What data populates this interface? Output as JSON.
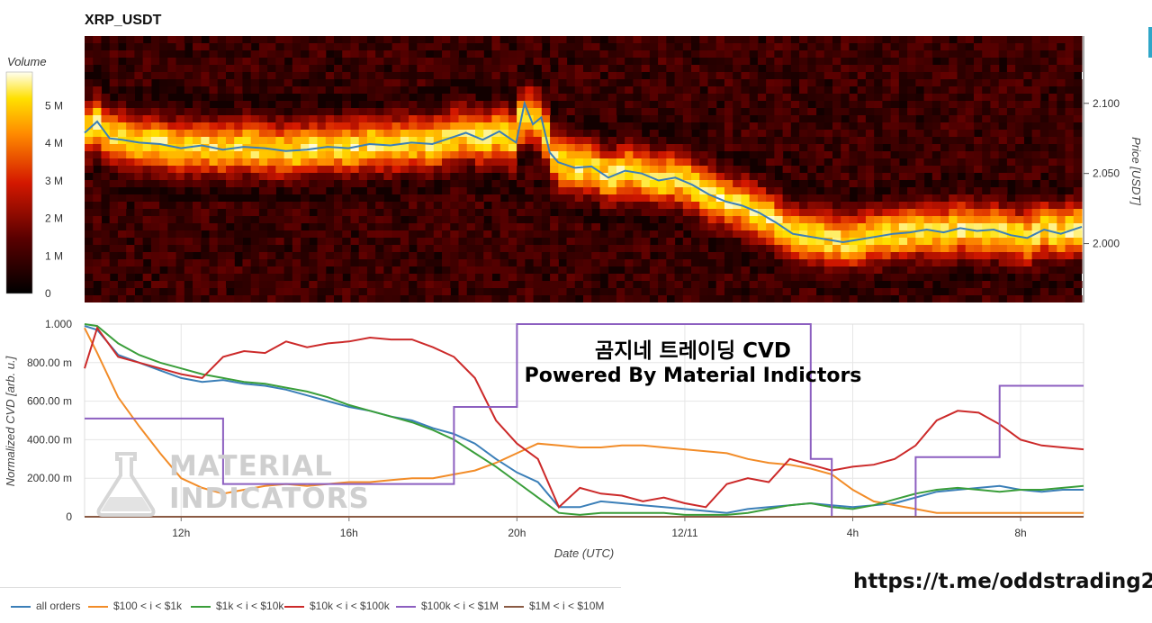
{
  "title": "XRP_USDT",
  "colorbar": {
    "title": "Volume",
    "ticks": [
      "0",
      "1 M",
      "2 M",
      "3 M",
      "4 M",
      "5 M"
    ],
    "tick_values": [
      0,
      1,
      2,
      3,
      4,
      5
    ],
    "max": 5.9
  },
  "top_chart": {
    "ylabel": "Price [USDT]",
    "y_ticks": [
      "2.000",
      "2.050",
      "2.100"
    ],
    "y_tick_values": [
      2.0,
      2.05,
      2.1
    ],
    "ylim": [
      1.958,
      2.148
    ],
    "price_color": "#3b7fb8"
  },
  "bottom_chart": {
    "ylabel": "Normalized CVD [arb. u.]",
    "xlabel": "Date (UTC)",
    "y_ticks": [
      "0",
      "200.00 m",
      "400.00 m",
      "600.00 m",
      "800.00 m",
      "1.000"
    ],
    "y_tick_values": [
      0,
      0.2,
      0.4,
      0.6,
      0.8,
      1.0
    ],
    "x_ticks": [
      "12h",
      "16h",
      "20h",
      "12/11",
      "4h",
      "8h"
    ],
    "x_tick_hours": [
      12,
      16,
      20,
      24,
      28,
      32
    ]
  },
  "watermark": {
    "title": "곰지네 트레이딩 CVD",
    "subtitle": "Powered By Material Indictors",
    "logo_line1": "MATERIAL",
    "logo_line2": "INDICATORS",
    "link": "https://t.me/oddstrading2"
  },
  "legend": [
    {
      "label": "all orders",
      "color": "#3b7fb8"
    },
    {
      "label": "$100 < i < $1k",
      "color": "#f28c28"
    },
    {
      "label": "$1k < i < $10k",
      "color": "#3a9e3a"
    },
    {
      "label": "$10k < i < $100k",
      "color": "#cc2a2a"
    },
    {
      "label": "$100k < i < $1M",
      "color": "#8c5fc0"
    },
    {
      "label": "$1M < i < $10M",
      "color": "#8a5a44"
    }
  ],
  "chart_data": [
    {
      "type": "heatmap",
      "title": "XRP_USDT",
      "ylabel": "Price [USDT]",
      "colorbar_label": "Volume",
      "x_range_hours": [
        9.7,
        33.5
      ],
      "ylim": [
        1.958,
        2.148
      ],
      "series": [
        {
          "name": "price",
          "x": [
            9.7,
            10.0,
            10.3,
            10.6,
            11.0,
            11.5,
            12.0,
            12.5,
            13.0,
            13.5,
            14.0,
            14.5,
            15.0,
            15.5,
            16.0,
            16.5,
            17.0,
            17.5,
            18.0,
            18.4,
            18.8,
            19.2,
            19.6,
            20.0,
            20.2,
            20.4,
            20.6,
            20.8,
            21.0,
            21.4,
            21.8,
            22.2,
            22.6,
            23.0,
            23.4,
            23.8,
            24.2,
            24.6,
            25.0,
            25.4,
            25.8,
            26.2,
            26.6,
            27.0,
            27.4,
            27.8,
            28.2,
            28.6,
            29.0,
            29.4,
            29.8,
            30.2,
            30.6,
            31.0,
            31.4,
            31.8,
            32.2,
            32.6,
            33.0,
            33.5
          ],
          "y": [
            2.079,
            2.087,
            2.075,
            2.074,
            2.072,
            2.071,
            2.068,
            2.07,
            2.067,
            2.069,
            2.068,
            2.066,
            2.067,
            2.069,
            2.068,
            2.071,
            2.07,
            2.072,
            2.071,
            2.075,
            2.079,
            2.074,
            2.08,
            2.072,
            2.1,
            2.085,
            2.09,
            2.065,
            2.058,
            2.054,
            2.055,
            2.047,
            2.052,
            2.05,
            2.045,
            2.047,
            2.042,
            2.035,
            2.03,
            2.027,
            2.022,
            2.015,
            2.007,
            2.005,
            2.003,
            2.001,
            2.003,
            2.005,
            2.007,
            2.008,
            2.01,
            2.008,
            2.011,
            2.009,
            2.01,
            2.006,
            2.004,
            2.01,
            2.007,
            2.012
          ]
        }
      ]
    },
    {
      "type": "line",
      "xlabel": "Date (UTC)",
      "ylabel": "Normalized CVD [arb. u.]",
      "ylim": [
        0,
        1.0
      ],
      "x": [
        9.7,
        10.0,
        10.5,
        11.0,
        11.5,
        12.0,
        12.5,
        13.0,
        13.5,
        14.0,
        14.5,
        15.0,
        15.5,
        16.0,
        16.5,
        17.0,
        17.5,
        18.0,
        18.5,
        19.0,
        19.5,
        20.0,
        20.5,
        21.0,
        21.5,
        22.0,
        22.5,
        23.0,
        23.5,
        24.0,
        24.5,
        25.0,
        25.5,
        26.0,
        26.5,
        27.0,
        27.5,
        28.0,
        28.5,
        29.0,
        29.5,
        30.0,
        30.5,
        31.0,
        31.5,
        32.0,
        32.5,
        33.0,
        33.5
      ],
      "series": [
        {
          "name": "all orders",
          "values": [
            0.99,
            0.97,
            0.84,
            0.8,
            0.76,
            0.72,
            0.7,
            0.71,
            0.69,
            0.68,
            0.66,
            0.63,
            0.6,
            0.57,
            0.55,
            0.52,
            0.5,
            0.46,
            0.43,
            0.38,
            0.3,
            0.23,
            0.18,
            0.05,
            0.05,
            0.08,
            0.07,
            0.06,
            0.05,
            0.04,
            0.03,
            0.02,
            0.04,
            0.05,
            0.06,
            0.07,
            0.06,
            0.05,
            0.06,
            0.07,
            0.1,
            0.13,
            0.14,
            0.15,
            0.16,
            0.14,
            0.13,
            0.14,
            0.14
          ]
        },
        {
          "name": "$100 < i < $1k",
          "values": [
            0.98,
            0.85,
            0.62,
            0.47,
            0.33,
            0.2,
            0.15,
            0.12,
            0.14,
            0.16,
            0.17,
            0.16,
            0.17,
            0.18,
            0.18,
            0.19,
            0.2,
            0.2,
            0.22,
            0.24,
            0.28,
            0.33,
            0.38,
            0.37,
            0.36,
            0.36,
            0.37,
            0.37,
            0.36,
            0.35,
            0.34,
            0.33,
            0.3,
            0.28,
            0.27,
            0.25,
            0.22,
            0.14,
            0.08,
            0.06,
            0.04,
            0.02,
            0.02,
            0.02,
            0.02,
            0.02,
            0.02,
            0.02,
            0.02
          ]
        },
        {
          "name": "$1k < i < $10k",
          "values": [
            1.0,
            0.99,
            0.9,
            0.84,
            0.8,
            0.77,
            0.74,
            0.72,
            0.7,
            0.69,
            0.67,
            0.65,
            0.62,
            0.58,
            0.55,
            0.52,
            0.49,
            0.45,
            0.4,
            0.33,
            0.26,
            0.18,
            0.1,
            0.02,
            0.01,
            0.02,
            0.02,
            0.02,
            0.02,
            0.01,
            0.01,
            0.01,
            0.02,
            0.04,
            0.06,
            0.07,
            0.05,
            0.04,
            0.06,
            0.09,
            0.12,
            0.14,
            0.15,
            0.14,
            0.13,
            0.14,
            0.14,
            0.15,
            0.16
          ]
        },
        {
          "name": "$10k < i < $100k",
          "values": [
            0.77,
            0.98,
            0.83,
            0.8,
            0.77,
            0.74,
            0.72,
            0.83,
            0.86,
            0.85,
            0.91,
            0.88,
            0.9,
            0.91,
            0.93,
            0.92,
            0.92,
            0.88,
            0.83,
            0.72,
            0.5,
            0.38,
            0.3,
            0.05,
            0.15,
            0.12,
            0.11,
            0.08,
            0.1,
            0.07,
            0.05,
            0.17,
            0.2,
            0.18,
            0.3,
            0.27,
            0.24,
            0.26,
            0.27,
            0.3,
            0.37,
            0.5,
            0.55,
            0.54,
            0.48,
            0.4,
            0.37,
            0.36,
            0.35
          ]
        },
        {
          "name": "$100k < i < $1M",
          "values": [
            0.51,
            0.51,
            0.51,
            0.51,
            0.51,
            0.51,
            0.51,
            0.17,
            0.17,
            0.17,
            0.17,
            0.17,
            0.17,
            0.17,
            0.17,
            0.17,
            0.17,
            0.17,
            0.57,
            0.57,
            0.57,
            1.0,
            1.0,
            1.0,
            1.0,
            1.0,
            1.0,
            1.0,
            1.0,
            1.0,
            1.0,
            1.0,
            1.0,
            1.0,
            1.0,
            0.3,
            0.0,
            0.0,
            0.0,
            0.0,
            0.31,
            0.31,
            0.31,
            0.31,
            0.68,
            0.68,
            0.68,
            0.68,
            0.68
          ]
        },
        {
          "name": "$1M < i < $10M",
          "values": [
            0,
            0,
            0,
            0,
            0,
            0,
            0,
            0,
            0,
            0,
            0,
            0,
            0,
            0,
            0,
            0,
            0,
            0,
            0,
            0,
            0,
            0,
            0,
            0,
            0,
            0,
            0,
            0,
            0,
            0,
            0,
            0,
            0,
            0,
            0,
            0,
            0,
            0,
            0,
            0,
            0,
            0,
            0,
            0,
            0,
            0,
            0,
            0,
            0
          ]
        }
      ]
    }
  ]
}
